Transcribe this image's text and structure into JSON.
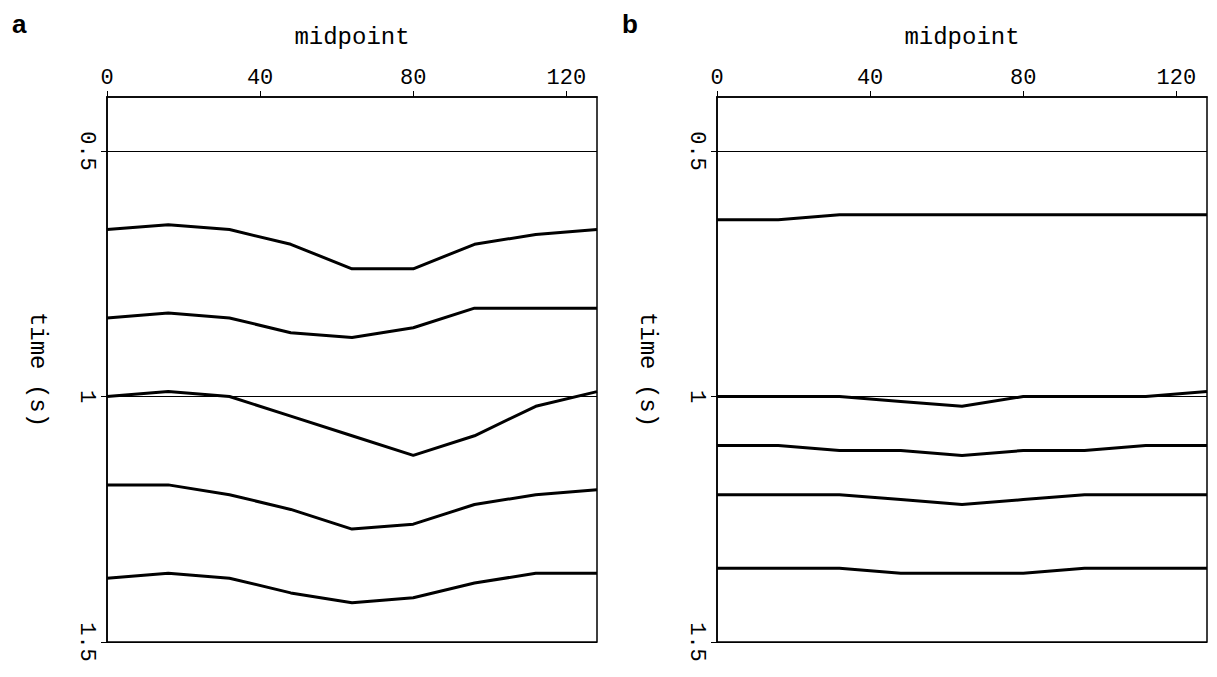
{
  "chart_data": [
    {
      "type": "line",
      "title": "a",
      "x_label": "midpoint",
      "y_label": "time (s)",
      "x": [
        0,
        16,
        32,
        48,
        64,
        80,
        96,
        112,
        128
      ],
      "xlim": [
        0,
        128
      ],
      "xticks": [
        0,
        40,
        80,
        120
      ],
      "ylim": [
        0.39,
        1.5
      ],
      "yticks": [
        0.5,
        1,
        1.5
      ],
      "grid": true,
      "series": [
        {
          "color": "#000000",
          "line_style": "solid",
          "values": [
            0.66,
            0.65,
            0.66,
            0.69,
            0.74,
            0.74,
            0.69,
            0.67,
            0.66
          ]
        },
        {
          "color": "#000000",
          "line_style": "solid",
          "values": [
            0.84,
            0.83,
            0.84,
            0.87,
            0.88,
            0.86,
            0.82,
            0.82,
            0.82
          ]
        },
        {
          "color": "#000000",
          "line_style": "solid",
          "values": [
            1.0,
            0.99,
            1.0,
            1.04,
            1.08,
            1.12,
            1.08,
            1.02,
            0.99
          ]
        },
        {
          "color": "#000000",
          "line_style": "solid",
          "values": [
            1.18,
            1.18,
            1.2,
            1.23,
            1.27,
            1.26,
            1.22,
            1.2,
            1.19
          ]
        },
        {
          "color": "#000000",
          "line_style": "solid",
          "values": [
            1.37,
            1.36,
            1.37,
            1.4,
            1.42,
            1.41,
            1.38,
            1.36,
            1.36
          ]
        }
      ]
    },
    {
      "type": "line",
      "title": "b",
      "x_label": "midpoint",
      "y_label": "time (s)",
      "x": [
        0,
        16,
        32,
        48,
        64,
        80,
        96,
        112,
        128
      ],
      "xlim": [
        0,
        128
      ],
      "xticks": [
        0,
        40,
        80,
        120
      ],
      "ylim": [
        0.39,
        1.5
      ],
      "yticks": [
        0.5,
        1,
        1.5
      ],
      "grid": true,
      "series": [
        {
          "color": "#000000",
          "line_style": "solid",
          "values": [
            0.64,
            0.64,
            0.63,
            0.63,
            0.63,
            0.63,
            0.63,
            0.63,
            0.63
          ]
        },
        {
          "color": "#000000",
          "line_style": "solid",
          "values": [
            1.0,
            1.0,
            1.0,
            1.01,
            1.02,
            1.0,
            1.0,
            1.0,
            0.99
          ]
        },
        {
          "color": "#000000",
          "line_style": "solid",
          "values": [
            1.1,
            1.1,
            1.11,
            1.11,
            1.12,
            1.11,
            1.11,
            1.1,
            1.1
          ]
        },
        {
          "color": "#000000",
          "line_style": "solid",
          "values": [
            1.2,
            1.2,
            1.2,
            1.21,
            1.22,
            1.21,
            1.2,
            1.2,
            1.2
          ]
        },
        {
          "color": "#000000",
          "line_style": "solid",
          "values": [
            1.35,
            1.35,
            1.35,
            1.36,
            1.36,
            1.36,
            1.35,
            1.35,
            1.35
          ]
        }
      ]
    }
  ]
}
